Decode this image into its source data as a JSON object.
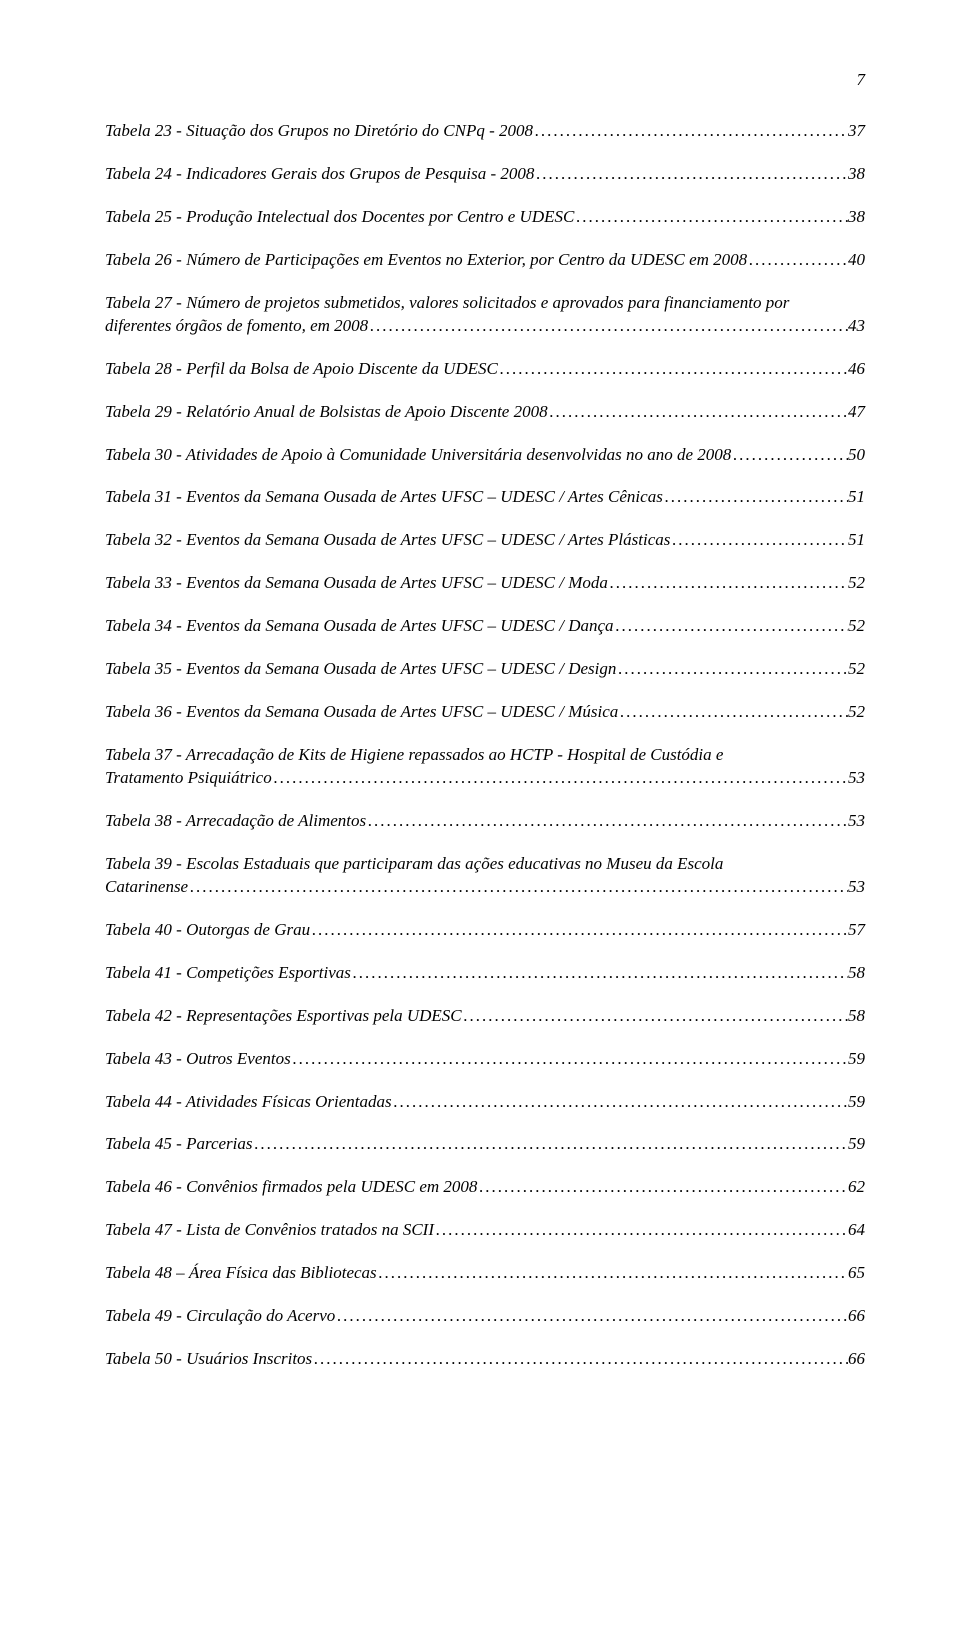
{
  "pageNumber": "7",
  "entries": [
    {
      "title": "Tabela 23 - Situação dos Grupos no Diretório do CNPq - 2008",
      "page": "37",
      "multiline": false
    },
    {
      "title": "Tabela 24 - Indicadores Gerais dos Grupos de Pesquisa - 2008",
      "page": "38",
      "multiline": false
    },
    {
      "title": "Tabela 25 - Produção Intelectual dos Docentes por Centro e UDESC",
      "page": "38",
      "multiline": false
    },
    {
      "title": "Tabela 26 - Número de Participações em Eventos no Exterior, por Centro da UDESC em 2008",
      "page": "40",
      "multiline": false
    },
    {
      "title": "Tabela 27 - Número de projetos submetidos, valores solicitados e aprovados para financiamento por",
      "title2": "diferentes órgãos de fomento, em 2008",
      "page": "43",
      "multiline": true
    },
    {
      "title": "Tabela 28 - Perfil da Bolsa de Apoio Discente da UDESC",
      "page": "46",
      "multiline": false
    },
    {
      "title": "Tabela 29 - Relatório Anual de Bolsistas de Apoio Discente 2008",
      "page": "47",
      "multiline": false
    },
    {
      "title": "Tabela 30 - Atividades de Apoio à Comunidade Universitária desenvolvidas no ano de 2008",
      "page": "50",
      "multiline": false
    },
    {
      "title": "Tabela 31 - Eventos da Semana Ousada de Artes UFSC – UDESC / Artes Cênicas",
      "page": "51",
      "multiline": false
    },
    {
      "title": "Tabela 32 - Eventos da Semana Ousada de Artes UFSC – UDESC / Artes Plásticas",
      "page": "51",
      "multiline": false
    },
    {
      "title": "Tabela 33 - Eventos da Semana Ousada de Artes UFSC – UDESC / Moda",
      "page": "52",
      "multiline": false
    },
    {
      "title": "Tabela 34 - Eventos da Semana Ousada de Artes UFSC – UDESC / Dança",
      "page": "52",
      "multiline": false
    },
    {
      "title": "Tabela 35 - Eventos da Semana Ousada de Artes UFSC – UDESC / Design",
      "page": "52",
      "multiline": false
    },
    {
      "title": "Tabela 36 - Eventos da Semana Ousada de Artes UFSC – UDESC / Música",
      "page": "52",
      "multiline": false
    },
    {
      "title": "Tabela 37 - Arrecadação de Kits de Higiene repassados ao HCTP - Hospital de Custódia e",
      "title2": "Tratamento Psiquiátrico",
      "page": "53",
      "multiline": true
    },
    {
      "title": "Tabela 38 - Arrecadação de Alimentos",
      "page": "53",
      "multiline": false
    },
    {
      "title": "Tabela 39 - Escolas Estaduais que participaram das ações educativas no Museu da Escola",
      "title2": "Catarinense",
      "page": "53",
      "multiline": true
    },
    {
      "title": "Tabela 40 - Outorgas de Grau",
      "page": "57",
      "multiline": false
    },
    {
      "title": "Tabela 41 - Competições Esportivas",
      "page": "58",
      "multiline": false
    },
    {
      "title": "Tabela 42 - Representações Esportivas pela UDESC",
      "page": "58",
      "multiline": false
    },
    {
      "title": "Tabela 43 - Outros Eventos",
      "page": "59",
      "multiline": false
    },
    {
      "title": "Tabela 44 - Atividades Físicas Orientadas",
      "page": "59",
      "multiline": false
    },
    {
      "title": "Tabela 45 - Parcerias",
      "page": "59",
      "multiline": false
    },
    {
      "title": "Tabela 46 - Convênios firmados pela UDESC em 2008",
      "page": "62",
      "multiline": false
    },
    {
      "title": "Tabela 47 - Lista de Convênios tratados na SCII",
      "page": "64",
      "multiline": false
    },
    {
      "title": "Tabela 48 – Área Física das Bibliotecas",
      "page": "65",
      "multiline": false
    },
    {
      "title": "Tabela 49 - Circulação do Acervo",
      "page": "66",
      "multiline": false
    },
    {
      "title": "Tabela 50 - Usuários Inscritos",
      "page": "66",
      "multiline": false
    }
  ],
  "dotLeader": "................................................................................................................................................................................................"
}
